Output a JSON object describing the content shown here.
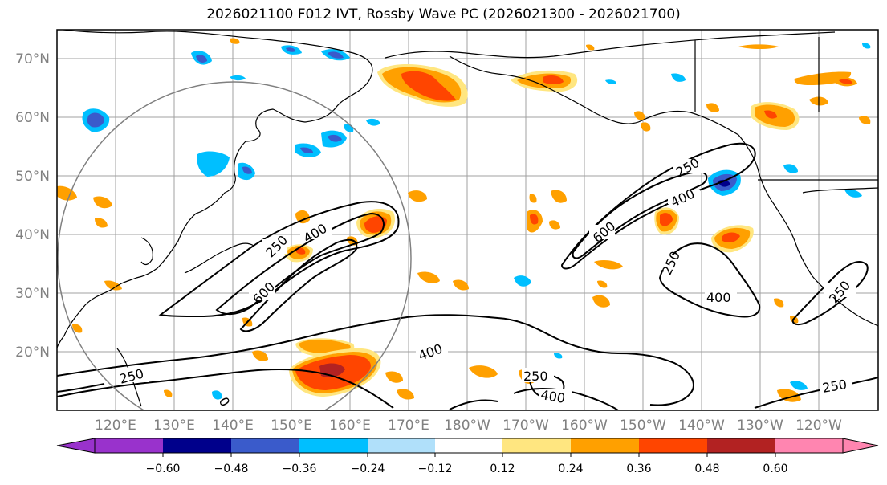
{
  "title": "2026021100 F012 IVT, Rossby Wave PC (2026021300 - 2026021700)",
  "map": {
    "lat_labels": [
      "70°N",
      "60°N",
      "50°N",
      "40°N",
      "30°N",
      "20°N"
    ],
    "lon_labels": [
      "120°E",
      "130°E",
      "140°E",
      "150°E",
      "160°E",
      "170°E",
      "180°W",
      "170°W",
      "160°W",
      "150°W",
      "140°W",
      "130°W",
      "120°W"
    ],
    "contour_labels": [
      "250",
      "400",
      "600",
      "250",
      "400",
      "600",
      "250",
      "400",
      "250",
      "250",
      "400",
      "400",
      "250",
      "0"
    ],
    "colors": {
      "frame": "#000000",
      "grid": "#a0a0a0",
      "coast": "#000000",
      "circle": "#808080",
      "tick_label": "#808080"
    }
  },
  "colorbar": {
    "tick_labels": [
      "−0.60",
      "−0.48",
      "−0.36",
      "−0.24",
      "−0.12",
      "0.12",
      "0.24",
      "0.36",
      "0.48",
      "0.60"
    ],
    "colors": [
      "#9932CC",
      "#00008B",
      "#3A5BCB",
      "#00BFFF",
      "#B0E0FA",
      "#FFFFFF",
      "#FFE680",
      "#FFA000",
      "#FF4500",
      "#B22222",
      "#FF85B0"
    ]
  }
}
